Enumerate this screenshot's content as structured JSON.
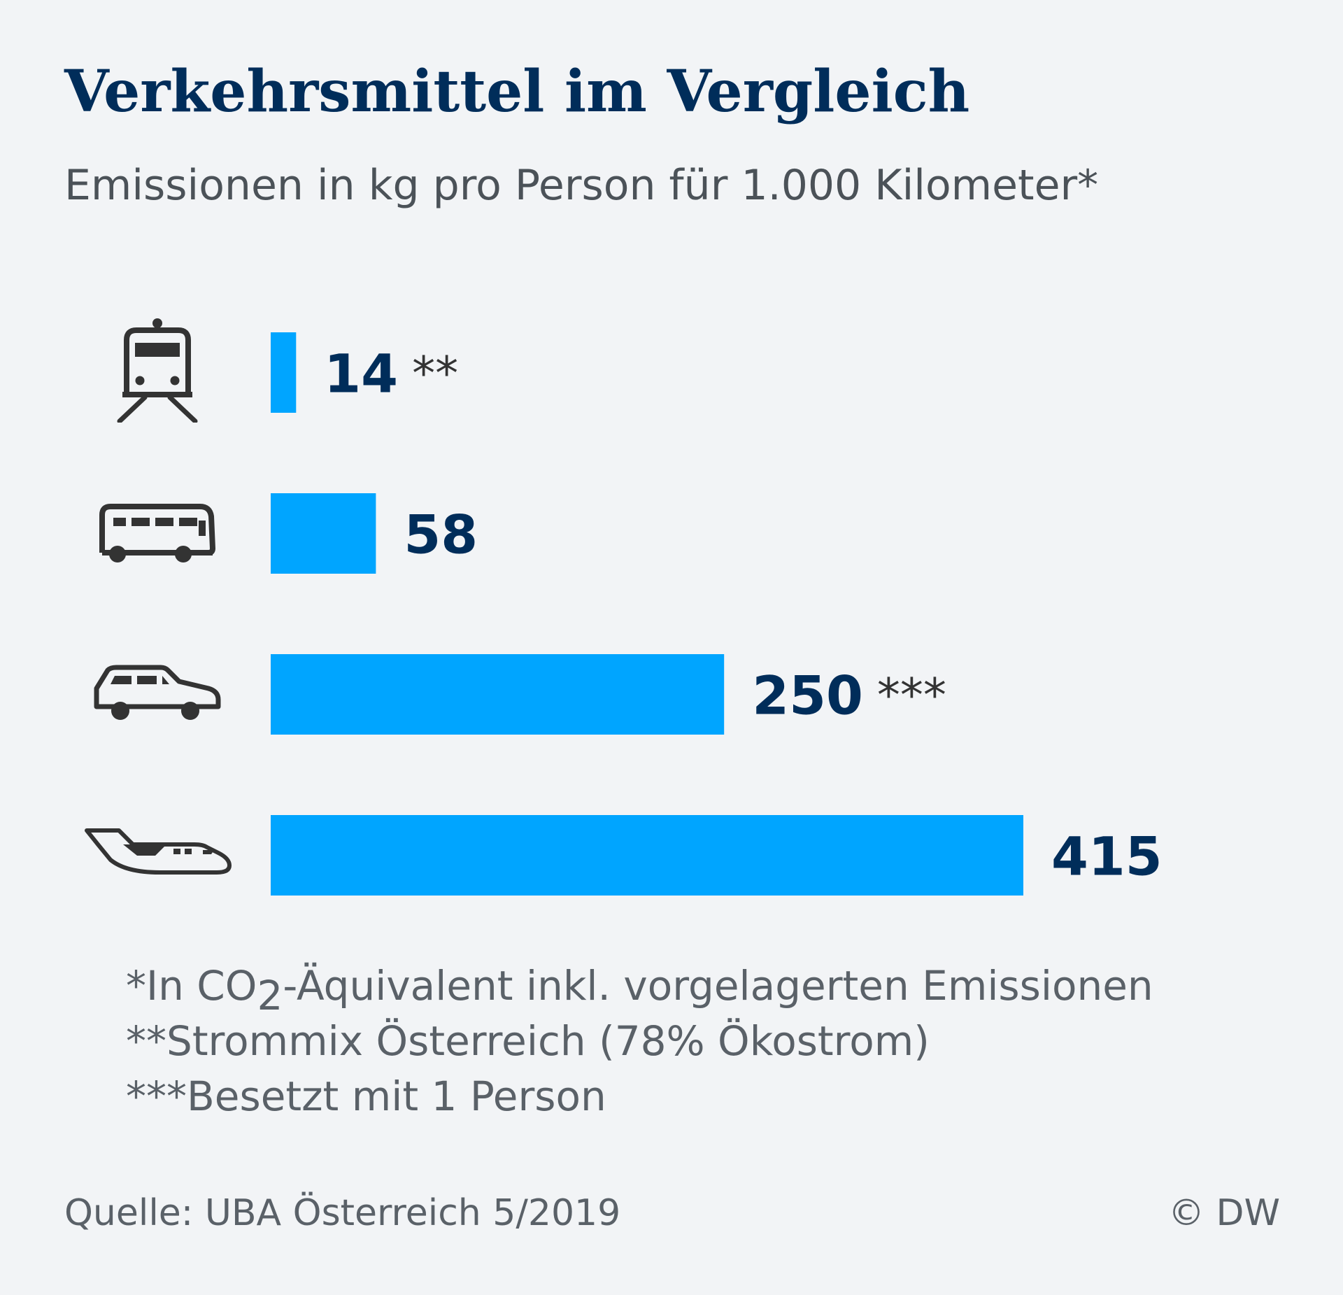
{
  "title": "Verkehrsmittel im Vergleich",
  "subtitle": "Emissionen in kg pro Person für 1.000 Kilometer*",
  "chart_data": {
    "type": "bar",
    "orientation": "horizontal",
    "categories": [
      "train-icon",
      "bus-icon",
      "car-icon",
      "airplane-icon"
    ],
    "values": [
      14,
      58,
      250,
      415
    ],
    "value_labels": [
      "14",
      "58",
      "250",
      "415"
    ],
    "value_notes": [
      "**",
      "",
      "***",
      ""
    ],
    "bar_color": "#00a5ff",
    "value_color": "#002d5a",
    "note_color": "#333333",
    "xlim": [
      0,
      415
    ],
    "grid": false
  },
  "footnotes": {
    "line1_pre": "*In CO",
    "line1_sub": "2",
    "line1_post": "-Äquivalent inkl. vorgelagerten Emissionen",
    "line2": "**Strommix Österreich (78% Ökostrom)",
    "line3": "***Besetzt mit 1 Person"
  },
  "source": "Quelle: UBA Österreich 5/2019",
  "copyright": "© DW",
  "colors": {
    "background": "#f2f4f6",
    "title": "#002d5a",
    "icon": "#333333"
  }
}
